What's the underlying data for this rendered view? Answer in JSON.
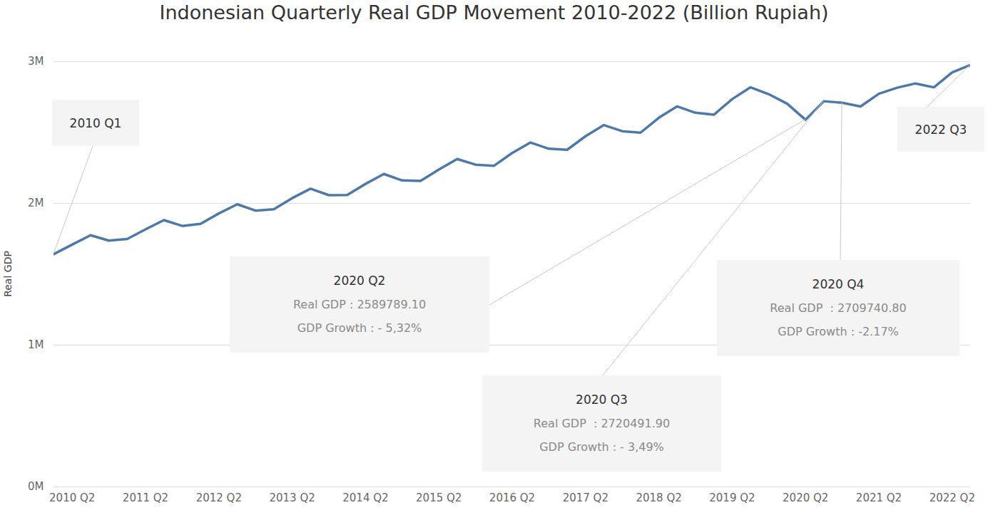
{
  "chart_data": {
    "type": "line",
    "title": "Indonesian Quarterly Real GDP Movement 2010-2022 (Billion Rupiah)",
    "y_label": "Real GDP",
    "categories": [
      null,
      "2010 Q2",
      null,
      null,
      null,
      "2011 Q2",
      null,
      null,
      null,
      "2012 Q2",
      null,
      null,
      null,
      "2013 Q2",
      null,
      null,
      null,
      "2014 Q2",
      null,
      null,
      null,
      "2015 Q2",
      null,
      null,
      null,
      "2016 Q2",
      null,
      null,
      null,
      "2017 Q2",
      null,
      null,
      null,
      "2018 Q2",
      null,
      null,
      null,
      "2019 Q2",
      null,
      null,
      null,
      "2020 Q2",
      null,
      null,
      null,
      "2021 Q2",
      null,
      null,
      null,
      "2022 Q2",
      null
    ],
    "values": [
      1642357,
      1709132,
      1775110,
      1737534,
      1748731,
      1816268,
      1881850,
      1840786,
      1855580,
      1929019,
      1993632,
      1948853,
      1958396,
      2036817,
      2103598,
      2057688,
      2058585,
      2137386,
      2207344,
      2161553,
      2158040,
      2238704,
      2312844,
      2272930,
      2264721,
      2355445,
      2429261,
      2385186,
      2378146,
      2473513,
      2552297,
      2508971,
      2498697,
      2603852,
      2684332,
      2638969,
      2625181,
      2735414,
      2818889,
      2769748,
      2703031,
      2589789.1,
      2720491.9,
      2709740.8,
      2683117,
      2772984,
      2815839,
      2845908,
      2818628,
      2923747,
      2976852
    ],
    "color": "#4e79a7",
    "ylim": [
      0,
      3000000
    ],
    "yticks": [
      {
        "value": 0,
        "label": "0M"
      },
      {
        "value": 1000000,
        "label": "1M"
      },
      {
        "value": 2000000,
        "label": "2M"
      },
      {
        "value": 3000000,
        "label": "3M"
      }
    ],
    "grid": true,
    "annotations": [
      {
        "value": 1642357,
        "text": [
          "2010 Q1"
        ]
      },
      {
        "value": 2589789.1,
        "text": [
          "2020 Q2",
          "Real GDP : 2589789.10",
          "GDP Growth : - 5,32%"
        ]
      },
      {
        "value": 2720491.9,
        "text": [
          "2020 Q3",
          "Real GDP  : 2720491.90",
          "GDP Growth : - 3,49%"
        ]
      },
      {
        "value": 2709740.8,
        "text": [
          "2020 Q4",
          "Real GDP  : 2709740.80",
          "GDP Growth : -2.17%"
        ]
      },
      {
        "value": 2976852,
        "text": [
          "2022 Q3"
        ]
      }
    ]
  }
}
